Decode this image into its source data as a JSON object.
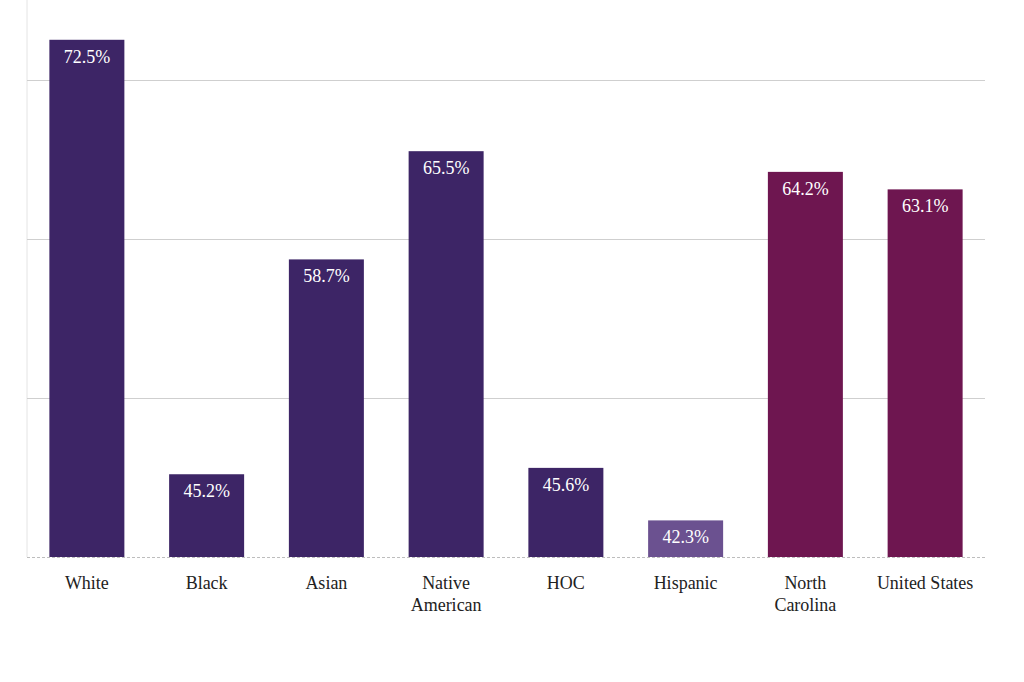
{
  "chart_data": {
    "type": "bar",
    "categories": [
      "White",
      "Black",
      "Asian",
      "Native American",
      "HOC",
      "Hispanic",
      "North Carolina",
      "United States"
    ],
    "values": [
      72.5,
      45.2,
      58.7,
      65.5,
      45.6,
      42.3,
      64.2,
      63.1
    ],
    "value_labels": [
      "72.5%",
      "45.2%",
      "58.7%",
      "65.5%",
      "45.6%",
      "42.3%",
      "64.2%",
      "63.1%"
    ],
    "colors": [
      "#3d2566",
      "#3d2566",
      "#3d2566",
      "#3d2566",
      "#3d2566",
      "#6b5190",
      "#6e1650",
      "#6e1650"
    ],
    "ylim": [
      40,
      75
    ],
    "yticks": [
      40,
      50,
      60,
      70
    ],
    "grid": true,
    "data_labels": true,
    "tick_labels": "x"
  }
}
